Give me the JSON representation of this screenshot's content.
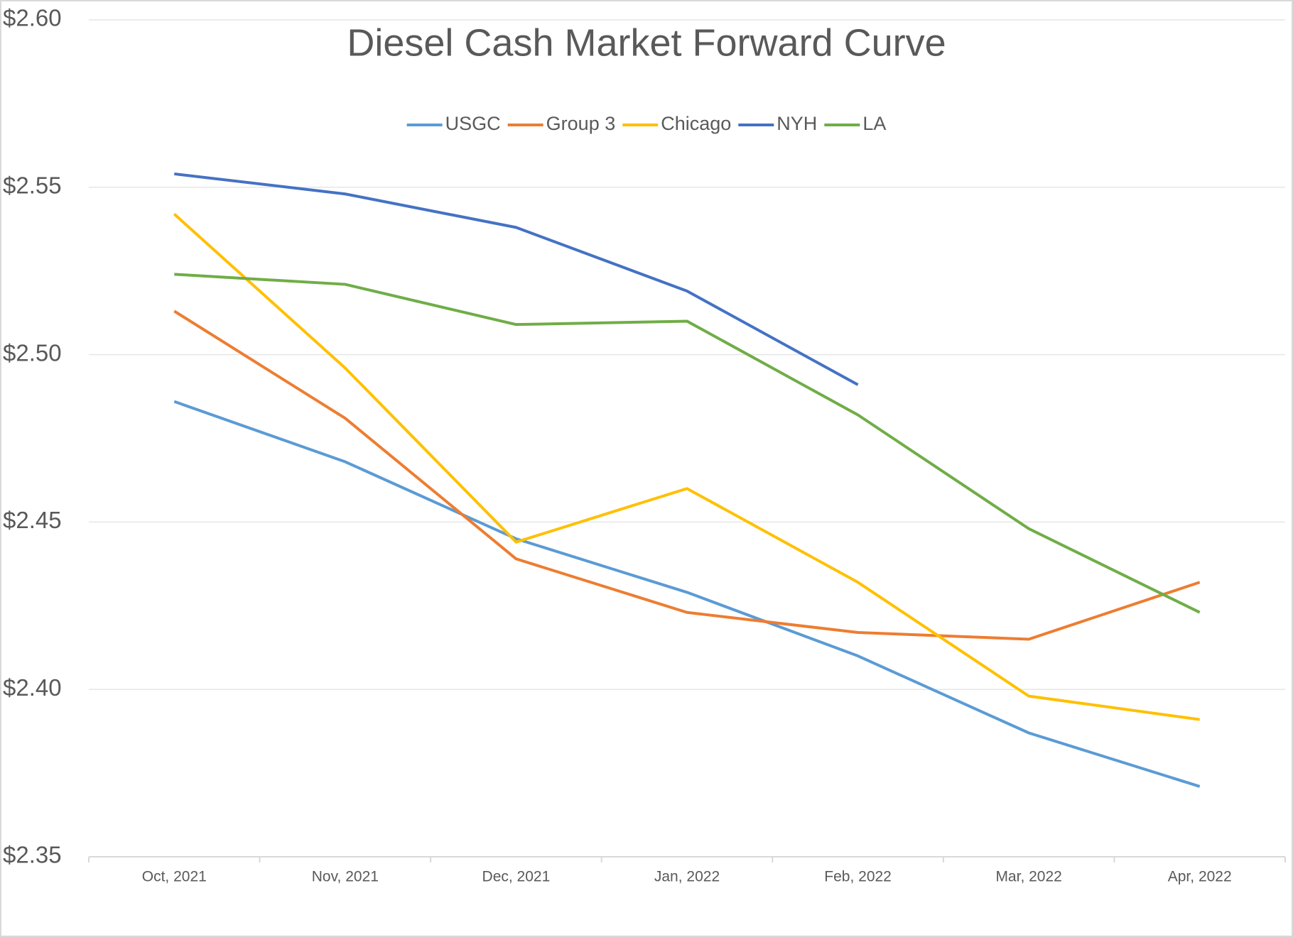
{
  "chart_data": {
    "type": "line",
    "title": "Diesel Cash Market Forward Curve",
    "categories": [
      "Oct, 2021",
      "Nov, 2021",
      "Dec, 2021",
      "Jan, 2022",
      "Feb, 2022",
      "Mar, 2022",
      "Apr, 2022"
    ],
    "series": [
      {
        "name": "USGC",
        "color": "#5b9bd5",
        "values": [
          2.486,
          2.468,
          2.445,
          2.429,
          2.41,
          2.387,
          2.371
        ]
      },
      {
        "name": "Group 3",
        "color": "#ed7d31",
        "values": [
          2.513,
          2.481,
          2.439,
          2.423,
          2.417,
          2.415,
          2.432
        ]
      },
      {
        "name": "Chicago",
        "color": "#ffc000",
        "values": [
          2.542,
          2.496,
          2.444,
          2.46,
          2.432,
          2.398,
          2.391
        ]
      },
      {
        "name": "NYH",
        "color": "#4472c4",
        "values": [
          2.554,
          2.548,
          2.538,
          2.519,
          2.491,
          null,
          null
        ]
      },
      {
        "name": "LA",
        "color": "#70ad47",
        "values": [
          2.524,
          2.521,
          2.509,
          2.51,
          2.482,
          2.448,
          2.423
        ]
      }
    ],
    "ylim": [
      2.35,
      2.6
    ],
    "yticks": [
      {
        "value": 2.35,
        "label": "$2.35"
      },
      {
        "value": 2.4,
        "label": "$2.40"
      },
      {
        "value": 2.45,
        "label": "$2.45"
      },
      {
        "value": 2.5,
        "label": "$2.50"
      },
      {
        "value": 2.55,
        "label": "$2.55"
      },
      {
        "value": 2.6,
        "label": "$2.60"
      }
    ],
    "grid": true,
    "legend": "top"
  }
}
